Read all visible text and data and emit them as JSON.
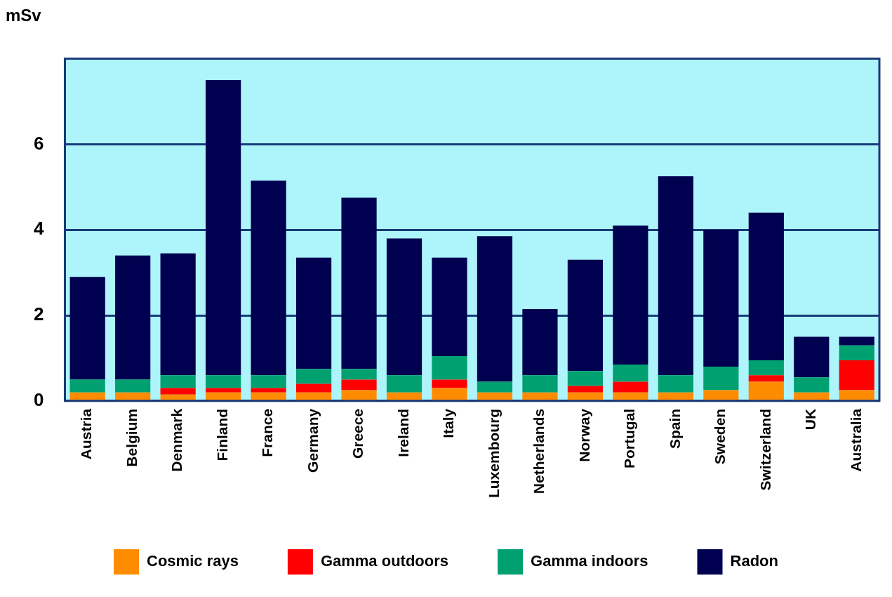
{
  "chart_data": {
    "type": "bar",
    "ylabel": "mSv",
    "stacked": true,
    "categories": [
      "Austria",
      "Belgium",
      "Denmark",
      "Finland",
      "France",
      "Germany",
      "Greece",
      "Ireland",
      "Italy",
      "Luxembourg",
      "Netherlands",
      "Norway",
      "Portugal",
      "Spain",
      "Sweden",
      "Switzerland",
      "UK",
      "Australia"
    ],
    "series": [
      {
        "name": "Cosmic rays",
        "color": "#ff8c00",
        "values": [
          0.2,
          0.2,
          0.15,
          0.2,
          0.2,
          0.2,
          0.25,
          0.2,
          0.3,
          0.2,
          0.2,
          0.2,
          0.2,
          0.2,
          0.25,
          0.45,
          0.2,
          0.25
        ]
      },
      {
        "name": "Gamma outdoors",
        "color": "#ff0000",
        "values": [
          0,
          0,
          0.15,
          0.1,
          0.1,
          0.2,
          0.25,
          0,
          0.2,
          0,
          0,
          0.15,
          0.25,
          0,
          0,
          0.15,
          0,
          0.7
        ]
      },
      {
        "name": "Gamma indoors",
        "color": "#00a070",
        "values": [
          0.3,
          0.3,
          0.3,
          0.3,
          0.3,
          0.35,
          0.25,
          0.4,
          0.55,
          0.25,
          0.4,
          0.35,
          0.4,
          0.4,
          0.55,
          0.35,
          0.35,
          0.35
        ]
      },
      {
        "name": "Radon",
        "color": "#000050",
        "values": [
          2.4,
          2.9,
          2.85,
          6.9,
          4.55,
          2.6,
          4.0,
          3.2,
          2.3,
          3.4,
          1.55,
          2.6,
          3.25,
          4.65,
          3.2,
          3.45,
          0.95,
          0.2
        ]
      }
    ],
    "ylim": [
      0,
      8
    ],
    "yticks": [
      0,
      2,
      4,
      6,
      {
        "value": 8,
        "label": null
      }
    ],
    "grid": "y",
    "legend": "bottom"
  }
}
